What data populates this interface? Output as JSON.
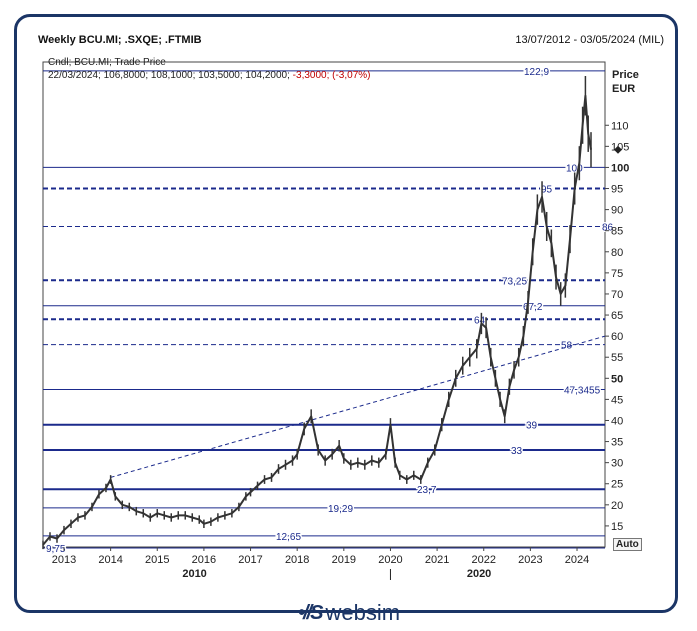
{
  "header": {
    "title": "Weekly BCU.MI; .SXQE; .FTMIB",
    "date_range": "13/07/2012 - 03/05/2024 (MIL)"
  },
  "info": {
    "line1": "Cndl; BCU.MI; Trade Price",
    "line2_prefix": "22/03/2024; 106,8000; 108,1000; 103,5000; 104,2000;",
    "line2_change": "-3,3000; (-3,07%)"
  },
  "axis": {
    "title_line1": "Price",
    "title_line2": "EUR",
    "auto_label": "Auto"
  },
  "footer": {
    "brand": "websim"
  },
  "chart_data": {
    "type": "line",
    "subtype": "candlestick",
    "colors": {
      "price": "#333333",
      "level_line": "#1b2a8c",
      "frame": "#1b3566",
      "change_negative": "#c00000"
    },
    "ylim": [
      10,
      125
    ],
    "y_ticks": [
      "15",
      "20",
      "25",
      "30",
      "35",
      "40",
      "45",
      "50",
      "55",
      "60",
      "65",
      "70",
      "75",
      "80",
      "85",
      "90",
      "95",
      "100",
      "105",
      "110"
    ],
    "x_ticks": [
      "2013",
      "2014",
      "2015",
      "2016",
      "2017",
      "2018",
      "2019",
      "2020",
      "2021",
      "2022",
      "2023",
      "2024"
    ],
    "x_group_labels": [
      "2010",
      "2020"
    ],
    "levels": [
      {
        "value": 122.9,
        "label": "122,9",
        "style": "solid"
      },
      {
        "value": 100,
        "label": "100",
        "style": "solid"
      },
      {
        "value": 95,
        "label": "95",
        "style": "dashed-bold"
      },
      {
        "value": 86,
        "label": "86",
        "style": "dashed"
      },
      {
        "value": 73.25,
        "label": "73,25",
        "style": "dashed-bold"
      },
      {
        "value": 67.2,
        "label": "67,2",
        "style": "solid"
      },
      {
        "value": 64,
        "label": "64",
        "style": "dashed-bold"
      },
      {
        "value": 58,
        "label": "58",
        "style": "dashed"
      },
      {
        "value": 47.3455,
        "label": "47,3455",
        "style": "solid"
      },
      {
        "value": 39,
        "label": "39",
        "style": "solid-bold"
      },
      {
        "value": 33,
        "label": "33",
        "style": "solid-bold"
      },
      {
        "value": 23.7,
        "label": "23,7",
        "style": "solid-bold"
      },
      {
        "value": 19.29,
        "label": "19,29",
        "style": "solid"
      },
      {
        "value": 12.65,
        "label": "12,65",
        "style": "solid"
      },
      {
        "value": 9.75,
        "label": "9,75",
        "style": "solid"
      }
    ],
    "trendline": {
      "x": [
        2014.0,
        2024.6
      ],
      "y": [
        26.5,
        60
      ]
    },
    "last_marker": 104.2,
    "series": [
      {
        "x": [
          2012.55,
          2012.7,
          2012.85,
          2013.0,
          2013.15,
          2013.3,
          2013.45,
          2013.6,
          2013.75,
          2013.9,
          2014.0,
          2014.1,
          2014.25,
          2014.4,
          2014.55,
          2014.7,
          2014.85,
          2015.0,
          2015.15,
          2015.3,
          2015.45,
          2015.6,
          2015.75,
          2015.9,
          2016.0,
          2016.15,
          2016.3,
          2016.45,
          2016.6,
          2016.75,
          2016.9,
          2017.0,
          2017.15,
          2017.3,
          2017.45,
          2017.6,
          2017.75,
          2017.9,
          2018.0,
          2018.15,
          2018.3,
          2018.45,
          2018.6,
          2018.75,
          2018.9,
          2019.0,
          2019.15,
          2019.3,
          2019.45,
          2019.6,
          2019.75,
          2019.9,
          2020.0,
          2020.1,
          2020.2,
          2020.35,
          2020.5,
          2020.65,
          2020.8,
          2020.95,
          2021.1,
          2021.25,
          2021.4,
          2021.55,
          2021.7,
          2021.85,
          2021.95,
          2022.05,
          2022.15,
          2022.25,
          2022.35,
          2022.45,
          2022.55,
          2022.65,
          2022.75,
          2022.85,
          2022.95,
          2023.05,
          2023.15,
          2023.25,
          2023.35,
          2023.45,
          2023.55,
          2023.65,
          2023.75,
          2023.85,
          2023.95,
          2024.05,
          2024.12,
          2024.18,
          2024.24,
          2024.3
        ],
        "values": [
          10.5,
          12.5,
          12.0,
          14.0,
          15.5,
          17.0,
          17.5,
          19.5,
          22.5,
          24.0,
          26.0,
          22.0,
          20.0,
          19.5,
          18.5,
          18.0,
          17.0,
          18.0,
          17.5,
          17.0,
          17.5,
          17.5,
          17.0,
          16.5,
          15.5,
          16.0,
          17.0,
          17.5,
          18.0,
          19.5,
          22.0,
          23.0,
          24.5,
          26.0,
          26.5,
          28.5,
          29.5,
          30.5,
          32.0,
          38.0,
          41.0,
          33.0,
          30.5,
          32.0,
          34.0,
          31.0,
          29.5,
          30.0,
          29.5,
          30.5,
          30.0,
          32.0,
          39.0,
          30.0,
          27.0,
          26.0,
          27.0,
          26.0,
          30.0,
          33.0,
          39.0,
          45.0,
          50.0,
          53.0,
          55.0,
          57.0,
          63.0,
          62.0,
          55.0,
          50.0,
          45.0,
          41.0,
          48.0,
          52.0,
          55.0,
          60.0,
          68.0,
          80.0,
          90.0,
          93.0,
          86.0,
          82.0,
          74.0,
          70.0,
          72.0,
          83.0,
          95.0,
          101.0,
          110.0,
          117.0,
          108.0,
          104.2
        ]
      }
    ]
  }
}
